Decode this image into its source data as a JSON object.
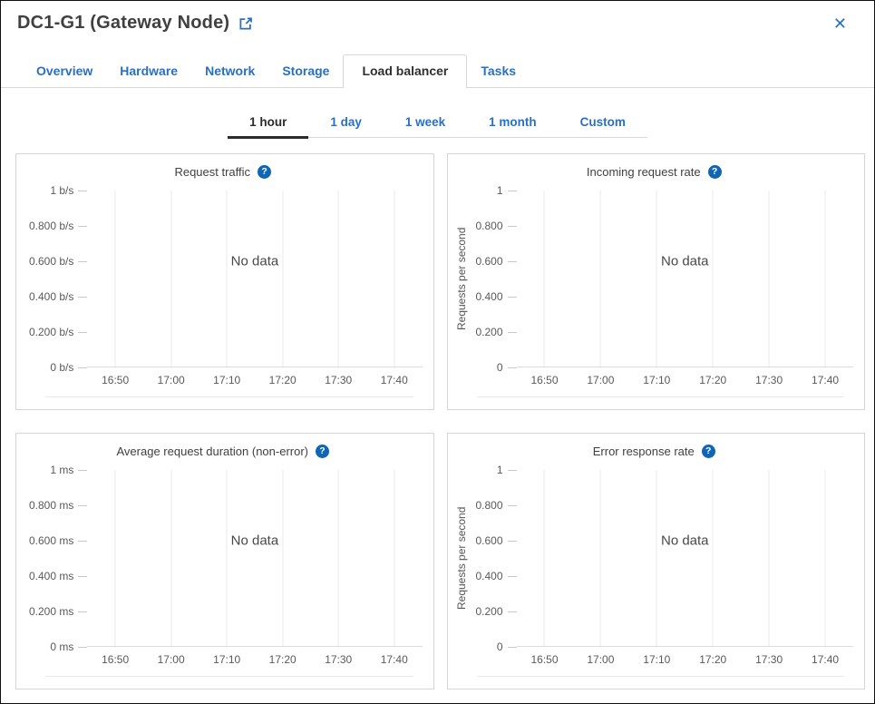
{
  "colors": {
    "accent_blue": "#2a6fc2",
    "help_icon_blue": "#1265b3",
    "active_tab_text": "#2f2f2f",
    "title_text": "#404040",
    "axis_text": "#595959",
    "grid_line": "#e8e8e8",
    "panel_border": "#d6d6d6",
    "time_underline": "#2b2b2b"
  },
  "header": {
    "title": "DC1-G1 (Gateway Node)",
    "close_glyph": "✕"
  },
  "icons": {
    "external_link": "external-link-icon",
    "close": "close-icon",
    "help_glyph": "?"
  },
  "node_tabs": [
    {
      "label": "Overview",
      "active": false
    },
    {
      "label": "Hardware",
      "active": false
    },
    {
      "label": "Network",
      "active": false
    },
    {
      "label": "Storage",
      "active": false
    },
    {
      "label": "Load balancer",
      "active": true
    },
    {
      "label": "Tasks",
      "active": false
    }
  ],
  "time_range_tabs": [
    {
      "label": "1 hour",
      "active": true
    },
    {
      "label": "1 day",
      "active": false
    },
    {
      "label": "1 week",
      "active": false
    },
    {
      "label": "1 month",
      "active": false
    },
    {
      "label": "Custom",
      "active": false
    }
  ],
  "chart_data": [
    {
      "type": "line",
      "title": "Request traffic",
      "ylabel": "",
      "xlabel": "",
      "y_ticks": [
        "1 b/s",
        "0.800 b/s",
        "0.600 b/s",
        "0.400 b/s",
        "0.200 b/s",
        "0 b/s"
      ],
      "x_ticks": [
        "16:50",
        "17:00",
        "17:10",
        "17:20",
        "17:30",
        "17:40"
      ],
      "ylim": [
        0,
        1
      ],
      "series": [],
      "no_data_label": "No data",
      "grid": "vertical-only",
      "legend": "none"
    },
    {
      "type": "line",
      "title": "Incoming request rate",
      "ylabel": "Requests per second",
      "xlabel": "",
      "y_ticks": [
        "1",
        "0.800",
        "0.600",
        "0.400",
        "0.200",
        "0"
      ],
      "x_ticks": [
        "16:50",
        "17:00",
        "17:10",
        "17:20",
        "17:30",
        "17:40"
      ],
      "ylim": [
        0,
        1
      ],
      "series": [],
      "no_data_label": "No data",
      "grid": "vertical-only",
      "legend": "none"
    },
    {
      "type": "line",
      "title": "Average request duration (non-error)",
      "ylabel": "",
      "xlabel": "",
      "y_ticks": [
        "1 ms",
        "0.800 ms",
        "0.600 ms",
        "0.400 ms",
        "0.200 ms",
        "0 ms"
      ],
      "x_ticks": [
        "16:50",
        "17:00",
        "17:10",
        "17:20",
        "17:30",
        "17:40"
      ],
      "ylim": [
        0,
        1
      ],
      "series": [],
      "no_data_label": "No data",
      "grid": "vertical-only",
      "legend": "none"
    },
    {
      "type": "line",
      "title": "Error response rate",
      "ylabel": "Requests per second",
      "xlabel": "",
      "y_ticks": [
        "1",
        "0.800",
        "0.600",
        "0.400",
        "0.200",
        "0"
      ],
      "x_ticks": [
        "16:50",
        "17:00",
        "17:10",
        "17:20",
        "17:30",
        "17:40"
      ],
      "ylim": [
        0,
        1
      ],
      "series": [],
      "no_data_label": "No data",
      "grid": "vertical-only",
      "legend": "none"
    }
  ]
}
